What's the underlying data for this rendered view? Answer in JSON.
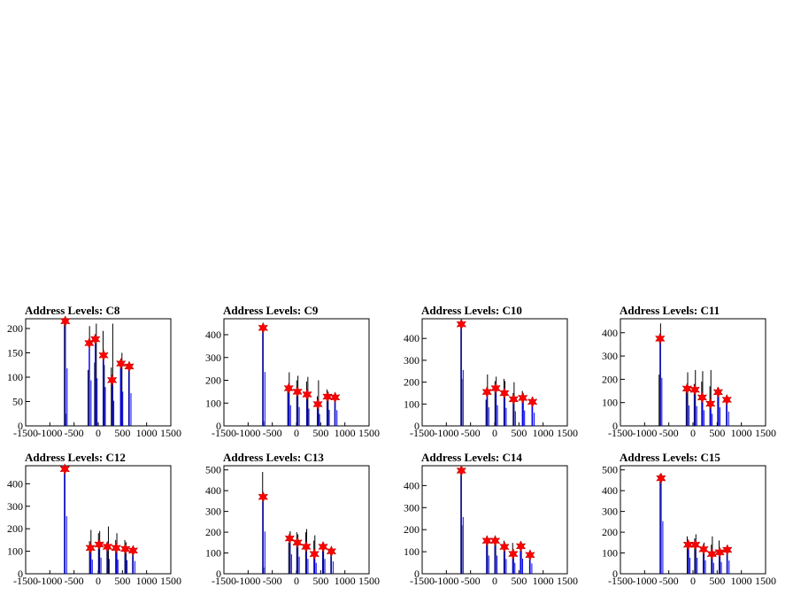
{
  "figure": {
    "background": "#ffffff",
    "colors": {
      "hist_line": "#0000ff",
      "spike_line": "#000000",
      "marker": "#ff0000",
      "frame": "#000000"
    }
  },
  "chart_data": [
    {
      "type": "bar",
      "title": "Address Levels: C8",
      "xlim": [
        -1500,
        1500
      ],
      "ylim": [
        0,
        220
      ],
      "xticks": [
        -1500,
        -1000,
        -500,
        0,
        500,
        1000,
        1500
      ],
      "yticks": [
        0,
        50,
        100,
        150,
        200
      ],
      "xtick_labels": [
        "-1500",
        "-1000",
        "-500",
        "0",
        "500",
        "1000",
        "1500"
      ],
      "ytick_labels": [
        "0",
        "50",
        "100",
        "150",
        "200"
      ],
      "peaks": [
        {
          "x": -680,
          "y": 215
        },
        {
          "x": -185,
          "y": 170
        },
        {
          "x": -60,
          "y": 178
        },
        {
          "x": 110,
          "y": 145
        },
        {
          "x": 285,
          "y": 94
        },
        {
          "x": 470,
          "y": 128
        },
        {
          "x": 640,
          "y": 122
        }
      ],
      "spikes": [
        {
          "x": -700,
          "y": 210
        },
        {
          "x": -670,
          "y": 25
        },
        {
          "x": -210,
          "y": 115
        },
        {
          "x": -180,
          "y": 205
        },
        {
          "x": -75,
          "y": 130
        },
        {
          "x": -40,
          "y": 210
        },
        {
          "x": 100,
          "y": 195
        },
        {
          "x": 125,
          "y": 125
        },
        {
          "x": 270,
          "y": 120
        },
        {
          "x": 300,
          "y": 210
        },
        {
          "x": 460,
          "y": 120
        },
        {
          "x": 490,
          "y": 150
        },
        {
          "x": 630,
          "y": 125
        }
      ]
    },
    {
      "type": "bar",
      "title": "Address Levels: C9",
      "xlim": [
        -1500,
        1500
      ],
      "ylim": [
        0,
        470
      ],
      "xticks": [
        -1500,
        -1000,
        -500,
        0,
        500,
        1000,
        1500
      ],
      "yticks": [
        0,
        100,
        200,
        300,
        400
      ],
      "xtick_labels": [
        "-1500",
        "-1000",
        "-500",
        "0",
        "500",
        "1000",
        "1500"
      ],
      "ytick_labels": [
        "0",
        "100",
        "200",
        "300",
        "400"
      ],
      "peaks": [
        {
          "x": -690,
          "y": 430
        },
        {
          "x": -160,
          "y": 165
        },
        {
          "x": 20,
          "y": 150
        },
        {
          "x": 220,
          "y": 138
        },
        {
          "x": 440,
          "y": 95
        },
        {
          "x": 640,
          "y": 128
        },
        {
          "x": 800,
          "y": 125
        }
      ],
      "spikes": [
        {
          "x": -700,
          "y": 440
        },
        {
          "x": -680,
          "y": 20
        },
        {
          "x": -180,
          "y": 170
        },
        {
          "x": -150,
          "y": 235
        },
        {
          "x": 5,
          "y": 200
        },
        {
          "x": 30,
          "y": 220
        },
        {
          "x": 210,
          "y": 195
        },
        {
          "x": 235,
          "y": 215
        },
        {
          "x": 430,
          "y": 130
        },
        {
          "x": 455,
          "y": 200
        },
        {
          "x": 630,
          "y": 160
        },
        {
          "x": 655,
          "y": 150
        },
        {
          "x": 790,
          "y": 140
        }
      ]
    },
    {
      "type": "bar",
      "title": "Address Levels: C10",
      "xlim": [
        -1500,
        1500
      ],
      "ylim": [
        0,
        490
      ],
      "xticks": [
        -1500,
        -1000,
        -500,
        0,
        500,
        1000,
        1500
      ],
      "yticks": [
        0,
        100,
        200,
        300,
        400
      ],
      "xtick_labels": [
        "-1500",
        "-1000",
        "-500",
        "0",
        "500",
        "1000",
        "1500"
      ],
      "ytick_labels": [
        "0",
        "100",
        "200",
        "300",
        "400"
      ],
      "peaks": [
        {
          "x": -690,
          "y": 465
        },
        {
          "x": -160,
          "y": 155
        },
        {
          "x": 20,
          "y": 172
        },
        {
          "x": 200,
          "y": 150
        },
        {
          "x": 390,
          "y": 122
        },
        {
          "x": 580,
          "y": 128
        },
        {
          "x": 780,
          "y": 110
        }
      ],
      "spikes": [
        {
          "x": -700,
          "y": 470
        },
        {
          "x": -680,
          "y": 215
        },
        {
          "x": -180,
          "y": 120
        },
        {
          "x": -150,
          "y": 235
        },
        {
          "x": 5,
          "y": 205
        },
        {
          "x": 30,
          "y": 225
        },
        {
          "x": 190,
          "y": 215
        },
        {
          "x": 210,
          "y": 205
        },
        {
          "x": 380,
          "y": 150
        },
        {
          "x": 400,
          "y": 200
        },
        {
          "x": 570,
          "y": 160
        },
        {
          "x": 590,
          "y": 150
        },
        {
          "x": 770,
          "y": 125
        }
      ]
    },
    {
      "type": "bar",
      "title": "Address Levels: C11",
      "xlim": [
        -1500,
        1500
      ],
      "ylim": [
        0,
        460
      ],
      "xticks": [
        -1500,
        -1000,
        -500,
        0,
        500,
        1000,
        1500
      ],
      "yticks": [
        0,
        100,
        200,
        300,
        400
      ],
      "xtick_labels": [
        "-1500",
        "-1000",
        "-500",
        "0",
        "500",
        "1000",
        "1500"
      ],
      "ytick_labels": [
        "0",
        "100",
        "200",
        "300",
        "400"
      ],
      "peaks": [
        {
          "x": -680,
          "y": 375
        },
        {
          "x": -120,
          "y": 160
        },
        {
          "x": 40,
          "y": 155
        },
        {
          "x": 190,
          "y": 122
        },
        {
          "x": 360,
          "y": 95
        },
        {
          "x": 520,
          "y": 145
        },
        {
          "x": 700,
          "y": 112
        }
      ],
      "spikes": [
        {
          "x": -700,
          "y": 220
        },
        {
          "x": -670,
          "y": 440
        },
        {
          "x": -140,
          "y": 150
        },
        {
          "x": -110,
          "y": 230
        },
        {
          "x": 25,
          "y": 180
        },
        {
          "x": 50,
          "y": 240
        },
        {
          "x": 180,
          "y": 190
        },
        {
          "x": 200,
          "y": 235
        },
        {
          "x": 350,
          "y": 170
        },
        {
          "x": 370,
          "y": 240
        },
        {
          "x": 510,
          "y": 165
        },
        {
          "x": 530,
          "y": 150
        },
        {
          "x": 690,
          "y": 130
        }
      ]
    },
    {
      "type": "bar",
      "title": "Address Levels: C12",
      "xlim": [
        -1500,
        1500
      ],
      "ylim": [
        0,
        480
      ],
      "xticks": [
        -1500,
        -1000,
        -500,
        0,
        500,
        1000,
        1500
      ],
      "yticks": [
        0,
        100,
        200,
        300,
        400
      ],
      "xtick_labels": [
        "-1500",
        "-1000",
        "-500",
        "0",
        "500",
        "1000",
        "1500"
      ],
      "ytick_labels": [
        "0",
        "100",
        "200",
        "300",
        "400"
      ],
      "peaks": [
        {
          "x": -690,
          "y": 465
        },
        {
          "x": -160,
          "y": 115
        },
        {
          "x": 20,
          "y": 130
        },
        {
          "x": 190,
          "y": 120
        },
        {
          "x": 370,
          "y": 115
        },
        {
          "x": 560,
          "y": 110
        },
        {
          "x": 720,
          "y": 103
        }
      ],
      "spikes": [
        {
          "x": -700,
          "y": 470
        },
        {
          "x": -180,
          "y": 145
        },
        {
          "x": -150,
          "y": 195
        },
        {
          "x": 5,
          "y": 180
        },
        {
          "x": 30,
          "y": 190
        },
        {
          "x": 180,
          "y": 140
        },
        {
          "x": 210,
          "y": 210
        },
        {
          "x": 360,
          "y": 150
        },
        {
          "x": 385,
          "y": 180
        },
        {
          "x": 550,
          "y": 150
        },
        {
          "x": 575,
          "y": 140
        },
        {
          "x": 710,
          "y": 115
        }
      ]
    },
    {
      "type": "bar",
      "title": "Address Levels: C13",
      "xlim": [
        -1500,
        1500
      ],
      "ylim": [
        0,
        520
      ],
      "xticks": [
        -1500,
        -1000,
        -500,
        0,
        500,
        1000,
        1500
      ],
      "yticks": [
        0,
        100,
        200,
        300,
        400,
        500
      ],
      "xtick_labels": [
        "-1500",
        "-1000",
        "-500",
        "0",
        "500",
        "1000",
        "1500"
      ],
      "ytick_labels": [
        "0",
        "100",
        "200",
        "300",
        "400",
        "500"
      ],
      "peaks": [
        {
          "x": -690,
          "y": 370
        },
        {
          "x": -140,
          "y": 170
        },
        {
          "x": 20,
          "y": 150
        },
        {
          "x": 200,
          "y": 130
        },
        {
          "x": 370,
          "y": 95
        },
        {
          "x": 550,
          "y": 130
        },
        {
          "x": 720,
          "y": 108
        }
      ],
      "spikes": [
        {
          "x": -700,
          "y": 490
        },
        {
          "x": -680,
          "y": 30
        },
        {
          "x": -160,
          "y": 150
        },
        {
          "x": -130,
          "y": 205
        },
        {
          "x": 5,
          "y": 200
        },
        {
          "x": 30,
          "y": 190
        },
        {
          "x": 190,
          "y": 200
        },
        {
          "x": 210,
          "y": 215
        },
        {
          "x": 360,
          "y": 160
        },
        {
          "x": 380,
          "y": 185
        },
        {
          "x": 540,
          "y": 150
        },
        {
          "x": 560,
          "y": 145
        },
        {
          "x": 710,
          "y": 120
        }
      ]
    },
    {
      "type": "bar",
      "title": "Address Levels: C14",
      "xlim": [
        -1500,
        1500
      ],
      "ylim": [
        0,
        490
      ],
      "xticks": [
        -1500,
        -1000,
        -500,
        0,
        500,
        1000,
        1500
      ],
      "yticks": [
        0,
        100,
        200,
        300,
        400
      ],
      "xtick_labels": [
        "-1500",
        "-1000",
        "-500",
        "0",
        "500",
        "1000",
        "1500"
      ],
      "ytick_labels": [
        "0",
        "100",
        "200",
        "300",
        "400"
      ],
      "peaks": [
        {
          "x": -690,
          "y": 468
        },
        {
          "x": -160,
          "y": 150
        },
        {
          "x": 10,
          "y": 150
        },
        {
          "x": 200,
          "y": 122
        },
        {
          "x": 380,
          "y": 90
        },
        {
          "x": 540,
          "y": 125
        },
        {
          "x": 730,
          "y": 85
        }
      ],
      "spikes": [
        {
          "x": -700,
          "y": 470
        },
        {
          "x": -680,
          "y": 220
        },
        {
          "x": -170,
          "y": 140
        },
        {
          "x": -150,
          "y": 165
        },
        {
          "x": 0,
          "y": 160
        },
        {
          "x": 20,
          "y": 165
        },
        {
          "x": 190,
          "y": 150
        },
        {
          "x": 210,
          "y": 140
        },
        {
          "x": 370,
          "y": 140
        },
        {
          "x": 390,
          "y": 110
        },
        {
          "x": 530,
          "y": 145
        },
        {
          "x": 550,
          "y": 130
        },
        {
          "x": 720,
          "y": 100
        }
      ]
    },
    {
      "type": "bar",
      "title": "Address Levels: C15",
      "xlim": [
        -1500,
        1500
      ],
      "ylim": [
        0,
        520
      ],
      "xticks": [
        -1500,
        -1000,
        -500,
        0,
        500,
        1000,
        1500
      ],
      "yticks": [
        0,
        100,
        200,
        300,
        400,
        500
      ],
      "xtick_labels": [
        "-1500",
        "-1000",
        "-500",
        "0",
        "500",
        "1000",
        "1500"
      ],
      "ytick_labels": [
        "0",
        "100",
        "200",
        "300",
        "400",
        "500"
      ],
      "peaks": [
        {
          "x": -660,
          "y": 460
        },
        {
          "x": -100,
          "y": 140
        },
        {
          "x": 50,
          "y": 140
        },
        {
          "x": 220,
          "y": 118
        },
        {
          "x": 390,
          "y": 95
        },
        {
          "x": 550,
          "y": 103
        },
        {
          "x": 710,
          "y": 115
        }
      ],
      "spikes": [
        {
          "x": -680,
          "y": 480
        },
        {
          "x": -120,
          "y": 180
        },
        {
          "x": -90,
          "y": 150
        },
        {
          "x": 35,
          "y": 170
        },
        {
          "x": 60,
          "y": 190
        },
        {
          "x": 210,
          "y": 140
        },
        {
          "x": 230,
          "y": 150
        },
        {
          "x": 380,
          "y": 140
        },
        {
          "x": 400,
          "y": 180
        },
        {
          "x": 540,
          "y": 160
        },
        {
          "x": 560,
          "y": 120
        },
        {
          "x": 700,
          "y": 130
        }
      ]
    }
  ]
}
